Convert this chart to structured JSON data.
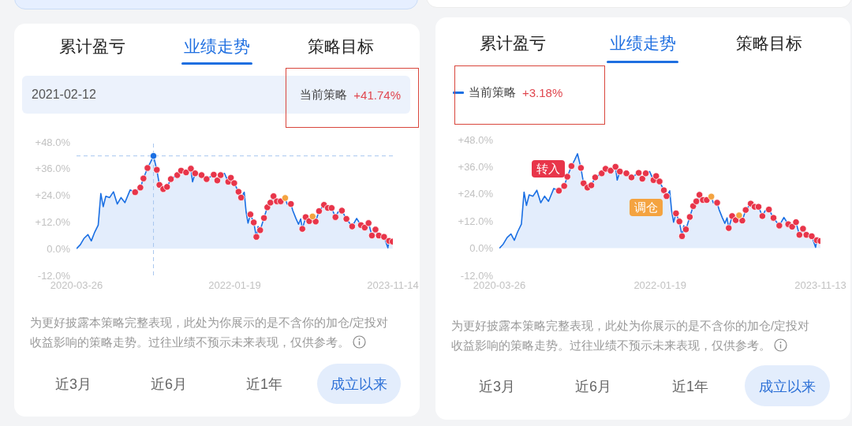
{
  "chart_data": [
    {
      "type": "area",
      "xlim": [
        "2020-03-26",
        "2023-11-14"
      ],
      "xticks": [
        "2020-03-26",
        "2022-01-19",
        "2023-11-14"
      ],
      "ylim": [
        -12,
        48
      ],
      "yticks": [
        {
          "value": -12,
          "label": "-12.0%"
        },
        {
          "value": 0,
          "label": "0.0%"
        },
        {
          "value": 12,
          "label": "+12.0%"
        },
        {
          "value": 24,
          "label": "+24.0%"
        },
        {
          "value": 36,
          "label": "+36.0%"
        },
        {
          "value": 48,
          "label": "+48.0%"
        }
      ],
      "legend": "top right",
      "series": [
        {
          "name": "当前策略",
          "color": "#1a6fe3",
          "x": [
            "2020-03-26",
            "2020-04-11",
            "2020-04-27",
            "2020-05-13",
            "2020-05-27",
            "2020-06-09",
            "2020-06-25",
            "2020-07-06",
            "2020-07-16",
            "2020-07-27",
            "2020-08-12",
            "2020-08-28",
            "2020-09-13",
            "2020-09-29",
            "2020-10-15",
            "2020-11-06",
            "2020-11-27",
            "2020-12-19",
            "2021-01-01",
            "2021-01-18",
            "2021-01-31",
            "2021-02-12",
            "2021-02-26",
            "2021-03-09",
            "2021-03-25",
            "2021-04-10",
            "2021-04-26",
            "2021-05-23",
            "2021-06-08",
            "2021-06-29",
            "2021-07-19",
            "2021-07-26",
            "2021-08-06",
            "2021-09-02",
            "2021-09-23",
            "2021-10-23",
            "2021-11-07",
            "2021-11-21",
            "2021-12-07",
            "2021-12-23",
            "2022-01-03",
            "2022-01-17",
            "2022-02-04",
            "2022-02-15",
            "2022-02-28",
            "2022-03-08",
            "2022-03-16",
            "2022-03-26",
            "2022-04-09",
            "2022-04-20",
            "2022-04-27",
            "2022-05-06",
            "2022-05-22",
            "2022-06-05",
            "2022-06-18",
            "2022-07-01",
            "2022-07-15",
            "2022-07-31",
            "2022-08-19",
            "2022-08-27",
            "2022-09-12",
            "2022-09-20",
            "2022-10-03",
            "2022-10-14",
            "2022-10-23",
            "2022-10-30",
            "2022-11-13",
            "2022-11-28",
            "2022-12-12",
            "2022-12-25",
            "2023-01-08",
            "2023-01-29",
            "2023-02-14",
            "2023-03-02",
            "2023-03-18",
            "2023-03-29",
            "2023-04-14",
            "2023-05-03",
            "2023-05-27",
            "2023-06-15",
            "2023-07-03",
            "2023-07-19",
            "2023-08-04",
            "2023-08-18",
            "2023-09-02",
            "2023-09-16",
            "2023-10-08",
            "2023-10-24",
            "2023-10-29",
            "2023-11-13"
          ],
          "values": [
            0.0,
            1.8,
            4.7,
            6.3,
            3.5,
            7.1,
            10.6,
            24.8,
            18.9,
            23.6,
            23.0,
            25.6,
            20.1,
            23.0,
            20.7,
            26.4,
            25.4,
            27.5,
            31.6,
            36.3,
            39.0,
            41.74,
            35.5,
            28.7,
            26.8,
            27.8,
            31.3,
            33.1,
            35.1,
            34.3,
            36.0,
            30.1,
            33.9,
            33.1,
            31.3,
            33.3,
            30.7,
            33.1,
            33.9,
            30.1,
            31.9,
            29.5,
            25.6,
            23.0,
            25.4,
            16.5,
            11.5,
            15.4,
            11.8,
            5.3,
            10.0,
            8.3,
            13.8,
            18.6,
            20.7,
            23.6,
            21.3,
            21.3,
            22.8,
            20.1,
            20.1,
            17.1,
            13.6,
            11.0,
            13.4,
            8.9,
            14.2,
            12.4,
            14.5,
            12.2,
            16.9,
            19.7,
            18.3,
            18.3,
            14.2,
            16.5,
            17.1,
            13.4,
            10.0,
            13.6,
            10.6,
            9.5,
            11.5,
            5.9,
            8.6,
            5.9,
            5.3,
            0.4,
            3.5,
            3.18
          ]
        },
        {
          "type": "scatter",
          "color": "#e8354a",
          "x": [
            "2020-11-27",
            "2020-12-19",
            "2021-01-01",
            "2021-01-18",
            "2021-02-26",
            "2021-03-09",
            "2021-03-25",
            "2021-04-10",
            "2021-04-26",
            "2021-05-23",
            "2021-06-08",
            "2021-06-29",
            "2021-07-19",
            "2021-08-06",
            "2021-09-02",
            "2021-09-23",
            "2021-10-23",
            "2021-11-07",
            "2021-11-21",
            "2021-12-23",
            "2022-01-03",
            "2022-01-17",
            "2022-02-04",
            "2022-02-15",
            "2022-03-26",
            "2022-04-09",
            "2022-04-20",
            "2022-05-06",
            "2022-05-22",
            "2022-06-05",
            "2022-06-18",
            "2022-07-01",
            "2022-07-15",
            "2022-07-31",
            "2022-09-12",
            "2022-10-30",
            "2022-11-13",
            "2022-11-28",
            "2022-12-25",
            "2023-01-08",
            "2023-01-29",
            "2023-02-14",
            "2023-03-02",
            "2023-03-18",
            "2023-04-14",
            "2023-05-03",
            "2023-05-27",
            "2023-07-03",
            "2023-07-19",
            "2023-08-04",
            "2023-08-18",
            "2023-09-02",
            "2023-09-16",
            "2023-10-08",
            "2023-10-29",
            "2023-11-13"
          ],
          "values": [
            25.4,
            27.5,
            31.6,
            36.3,
            35.5,
            28.7,
            26.8,
            27.8,
            31.3,
            33.1,
            35.1,
            34.3,
            36.0,
            33.9,
            33.1,
            31.3,
            33.3,
            30.7,
            33.1,
            30.1,
            31.9,
            29.5,
            25.6,
            23.0,
            15.4,
            11.8,
            5.3,
            8.3,
            13.8,
            18.6,
            20.7,
            23.6,
            21.3,
            21.3,
            20.1,
            8.9,
            14.2,
            12.4,
            12.2,
            16.9,
            19.7,
            18.3,
            18.3,
            14.2,
            17.1,
            13.4,
            10.0,
            10.6,
            9.5,
            11.5,
            5.9,
            8.6,
            5.9,
            5.3,
            3.5,
            3.18
          ]
        },
        {
          "type": "scatter",
          "color": "#f4a340",
          "x": [
            "2022-08-19",
            "2022-12-12"
          ],
          "values": [
            22.8,
            14.5
          ]
        },
        {
          "type": "scatter",
          "color": "#1a6fe3",
          "x": [
            "2021-02-12"
          ],
          "values": [
            41.74
          ]
        }
      ],
      "ref_lines": [
        {
          "axis": "x",
          "value": "2021-02-12",
          "color": "#a9c7ef",
          "line_style": "dashed"
        },
        {
          "axis": "y",
          "value": 41.74,
          "color": "#a9c7ef",
          "line_style": "dashed"
        }
      ],
      "annotations": [
        "累计盈亏",
        "业绩走势",
        "策略目标",
        "2021-02-12",
        "+41.74%",
        "为更好披露本策略完整表现，此处为你展示的是不含你的加仓/定投对收益影响的策略走势。过往业绩不预示未来表现，仅供参考。",
        "近3月",
        "近6月",
        "近1年",
        "成立以来"
      ]
    },
    {
      "type": "area",
      "xlim": [
        "2020-03-26",
        "2023-11-13"
      ],
      "xticks": [
        "2020-03-26",
        "2022-01-19",
        "2023-11-13"
      ],
      "ylim": [
        -12,
        48
      ],
      "yticks": [
        {
          "value": -12,
          "label": "-12.0%"
        },
        {
          "value": 0,
          "label": "0.0%"
        },
        {
          "value": 12,
          "label": "+12.0%"
        },
        {
          "value": 24,
          "label": "+24.0%"
        },
        {
          "value": 36,
          "label": "+36.0%"
        },
        {
          "value": 48,
          "label": "+48.0%"
        }
      ],
      "legend": "top left",
      "series": [
        {
          "name": "当前策略",
          "color": "#1a6fe3",
          "x": [
            "2020-03-26",
            "2020-04-11",
            "2020-04-27",
            "2020-05-13",
            "2020-05-27",
            "2020-06-09",
            "2020-06-25",
            "2020-07-06",
            "2020-07-16",
            "2020-07-27",
            "2020-08-12",
            "2020-08-28",
            "2020-09-13",
            "2020-09-29",
            "2020-10-15",
            "2020-11-06",
            "2020-11-27",
            "2020-12-19",
            "2021-01-01",
            "2021-01-18",
            "2021-01-31",
            "2021-02-12",
            "2021-02-26",
            "2021-03-09",
            "2021-03-25",
            "2021-04-10",
            "2021-04-26",
            "2021-05-23",
            "2021-06-08",
            "2021-06-29",
            "2021-07-19",
            "2021-07-26",
            "2021-08-06",
            "2021-09-02",
            "2021-09-23",
            "2021-10-23",
            "2021-11-07",
            "2021-11-21",
            "2021-12-07",
            "2021-12-23",
            "2022-01-03",
            "2022-01-17",
            "2022-02-04",
            "2022-02-15",
            "2022-02-28",
            "2022-03-08",
            "2022-03-16",
            "2022-03-26",
            "2022-04-09",
            "2022-04-20",
            "2022-04-27",
            "2022-05-06",
            "2022-05-22",
            "2022-06-05",
            "2022-06-18",
            "2022-07-01",
            "2022-07-15",
            "2022-07-31",
            "2022-08-19",
            "2022-08-27",
            "2022-09-12",
            "2022-09-20",
            "2022-10-03",
            "2022-10-14",
            "2022-10-23",
            "2022-10-30",
            "2022-11-13",
            "2022-11-28",
            "2022-12-12",
            "2022-12-25",
            "2023-01-08",
            "2023-01-29",
            "2023-02-14",
            "2023-03-02",
            "2023-03-18",
            "2023-03-29",
            "2023-04-14",
            "2023-05-03",
            "2023-05-27",
            "2023-06-15",
            "2023-07-03",
            "2023-07-19",
            "2023-08-04",
            "2023-08-18",
            "2023-09-02",
            "2023-09-16",
            "2023-10-08",
            "2023-10-24",
            "2023-10-29",
            "2023-11-13"
          ],
          "values": [
            0.0,
            1.8,
            4.7,
            6.3,
            3.5,
            7.1,
            10.6,
            24.8,
            18.9,
            23.6,
            23.0,
            25.6,
            20.1,
            23.0,
            20.7,
            26.4,
            25.4,
            27.5,
            31.6,
            36.3,
            39.0,
            41.74,
            35.5,
            28.7,
            26.8,
            27.8,
            31.3,
            33.1,
            35.1,
            34.3,
            36.0,
            30.1,
            33.9,
            33.1,
            31.3,
            33.3,
            30.7,
            33.1,
            33.9,
            30.1,
            31.9,
            29.5,
            25.6,
            23.0,
            25.4,
            16.5,
            11.5,
            15.4,
            11.8,
            5.3,
            10.0,
            8.3,
            13.8,
            18.6,
            20.7,
            23.6,
            21.3,
            21.3,
            22.8,
            20.1,
            20.1,
            17.1,
            13.6,
            11.0,
            13.4,
            8.9,
            14.2,
            12.4,
            14.5,
            12.2,
            16.9,
            19.7,
            18.3,
            18.3,
            14.2,
            16.5,
            17.1,
            13.4,
            10.0,
            13.6,
            10.6,
            9.5,
            11.5,
            5.9,
            8.6,
            5.9,
            5.3,
            0.4,
            3.5,
            3.18
          ]
        },
        {
          "type": "scatter",
          "color": "#e8354a",
          "x": [
            "2020-11-27",
            "2020-12-19",
            "2021-01-01",
            "2021-01-18",
            "2021-02-26",
            "2021-03-09",
            "2021-03-25",
            "2021-04-10",
            "2021-04-26",
            "2021-05-23",
            "2021-06-08",
            "2021-06-29",
            "2021-07-19",
            "2021-08-06",
            "2021-09-02",
            "2021-09-23",
            "2021-10-23",
            "2021-11-07",
            "2021-11-21",
            "2021-12-23",
            "2022-01-03",
            "2022-01-17",
            "2022-02-04",
            "2022-02-15",
            "2022-03-26",
            "2022-04-09",
            "2022-04-20",
            "2022-05-06",
            "2022-05-22",
            "2022-06-05",
            "2022-06-18",
            "2022-07-01",
            "2022-07-15",
            "2022-07-31",
            "2022-09-12",
            "2022-10-30",
            "2022-11-13",
            "2022-11-28",
            "2022-12-25",
            "2023-01-08",
            "2023-01-29",
            "2023-02-14",
            "2023-03-02",
            "2023-03-18",
            "2023-04-14",
            "2023-05-03",
            "2023-05-27",
            "2023-07-03",
            "2023-07-19",
            "2023-08-04",
            "2023-08-18",
            "2023-09-02",
            "2023-09-16",
            "2023-10-08",
            "2023-10-29",
            "2023-11-13"
          ],
          "values": [
            25.4,
            27.5,
            31.6,
            36.3,
            35.5,
            28.7,
            26.8,
            27.8,
            31.3,
            33.1,
            35.1,
            34.3,
            36.0,
            33.9,
            33.1,
            31.3,
            33.3,
            30.7,
            33.1,
            30.1,
            31.9,
            29.5,
            25.6,
            23.0,
            15.4,
            11.8,
            5.3,
            8.3,
            13.8,
            18.6,
            20.7,
            23.6,
            21.3,
            21.3,
            20.1,
            8.9,
            14.2,
            12.4,
            12.2,
            16.9,
            19.7,
            18.3,
            18.3,
            14.2,
            17.1,
            13.4,
            10.0,
            10.6,
            9.5,
            11.5,
            5.9,
            8.6,
            5.9,
            5.3,
            3.5,
            3.18
          ]
        },
        {
          "type": "scatter",
          "color": "#f4a340",
          "x": [
            "2022-08-19",
            "2022-12-12"
          ],
          "values": [
            22.8,
            14.5
          ]
        }
      ],
      "annotations": [
        "累计盈亏",
        "业绩走势",
        "策略目标",
        "+3.18%",
        "转入",
        "调仓",
        "为更好披露本策略完整表现，此处为你展示的是不含你的加仓/定投对收益影响的策略走势。过往业绩不预示未来表现，仅供参考。",
        "近3月",
        "近6月",
        "近1年",
        "成立以来"
      ]
    }
  ]
}
